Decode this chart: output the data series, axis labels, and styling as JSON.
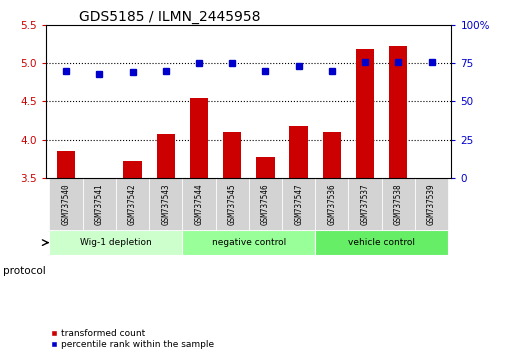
{
  "title": "GDS5185 / ILMN_2445958",
  "samples": [
    "GSM737540",
    "GSM737541",
    "GSM737542",
    "GSM737543",
    "GSM737544",
    "GSM737545",
    "GSM737546",
    "GSM737547",
    "GSM737536",
    "GSM737537",
    "GSM737538",
    "GSM737539"
  ],
  "red_values": [
    3.85,
    3.5,
    3.72,
    4.07,
    4.55,
    4.1,
    3.78,
    4.18,
    4.1,
    5.18,
    5.22,
    3.5
  ],
  "blue_values": [
    70,
    68,
    69,
    70,
    75,
    75,
    70,
    73,
    70,
    76,
    76,
    76
  ],
  "ylim_left": [
    3.5,
    5.5
  ],
  "ylim_right": [
    0,
    100
  ],
  "yticks_left": [
    3.5,
    4.0,
    4.5,
    5.0,
    5.5
  ],
  "yticks_right": [
    0,
    25,
    50,
    75,
    100
  ],
  "ytick_labels_right": [
    "0",
    "25",
    "50",
    "75",
    "100%"
  ],
  "grid_yticks": [
    4.0,
    4.5,
    5.0
  ],
  "groups": [
    {
      "label": "Wig-1 depletion",
      "start": 0,
      "end": 4,
      "color": "#ccffcc"
    },
    {
      "label": "negative control",
      "start": 4,
      "end": 8,
      "color": "#99ff99"
    },
    {
      "label": "vehicle control",
      "start": 8,
      "end": 12,
      "color": "#66ee66"
    }
  ],
  "bar_color": "#cc0000",
  "dot_color": "#0000cc",
  "bg_color": "#ffffff",
  "plot_bg": "#ffffff",
  "axis_color_left": "#cc0000",
  "axis_color_right": "#0000cc",
  "legend_red_label": "transformed count",
  "legend_blue_label": "percentile rank within the sample",
  "protocol_label": "protocol",
  "gray_box_color": "#d3d3d3"
}
